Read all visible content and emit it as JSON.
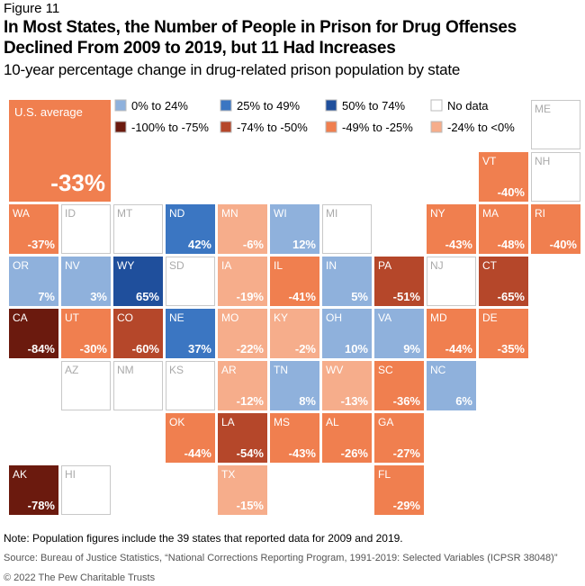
{
  "figure": "Figure 11",
  "chart_data": {
    "type": "tilemap",
    "title": "In Most States, the Number of People in Prison for Drug Offenses Declined From 2009 to 2019, but 11 Had Increases",
    "subtitle": "10-year percentage change in drug-related prison population by state",
    "average": {
      "label": "U.S. average",
      "value": -33,
      "value_label": "-33%",
      "color": "#f07f4f"
    },
    "legend": [
      {
        "label": "0% to 24%",
        "color": "#8fb1dc"
      },
      {
        "label": "25% to 49%",
        "color": "#3b76c2"
      },
      {
        "label": "50% to 74%",
        "color": "#1f4f9c"
      },
      {
        "label": "No data",
        "color": "#ffffff"
      },
      {
        "label": "-100% to -75%",
        "color": "#6b1a0e"
      },
      {
        "label": "-74% to -50%",
        "color": "#b5472a"
      },
      {
        "label": "-49% to -25%",
        "color": "#f07f4f"
      },
      {
        "label": "-24% to <0%",
        "color": "#f6ad8b"
      }
    ],
    "categories": [
      "ME",
      "VT",
      "NH",
      "WA",
      "ID",
      "MT",
      "ND",
      "MN",
      "WI",
      "MI",
      "NY",
      "MA",
      "RI",
      "OR",
      "NV",
      "WY",
      "SD",
      "IA",
      "IL",
      "IN",
      "PA",
      "NJ",
      "CT",
      "CA",
      "UT",
      "CO",
      "NE",
      "MO",
      "KY",
      "OH",
      "VA",
      "MD",
      "DE",
      "AZ",
      "NM",
      "KS",
      "AR",
      "TN",
      "WV",
      "SC",
      "NC",
      "OK",
      "LA",
      "MS",
      "AL",
      "GA",
      "AK",
      "HI",
      "TX",
      "FL"
    ],
    "values": [
      null,
      -40,
      null,
      -37,
      null,
      null,
      42,
      -6,
      12,
      null,
      -43,
      -48,
      -40,
      7,
      3,
      65,
      null,
      -19,
      -41,
      5,
      -51,
      null,
      -65,
      -84,
      -30,
      -60,
      37,
      -22,
      -2,
      10,
      9,
      -44,
      -35,
      null,
      null,
      null,
      -12,
      8,
      -13,
      -36,
      6,
      -44,
      -54,
      -43,
      -26,
      -27,
      -78,
      null,
      -15,
      -29
    ],
    "value_labels": [
      null,
      "-40%",
      null,
      "-37%",
      null,
      null,
      "42%",
      "-6%",
      "12%",
      null,
      "-43%",
      "-48%",
      "-40%",
      "7%",
      "3%",
      "65%",
      null,
      "-19%",
      "-41%",
      "5%",
      "-51%",
      null,
      "-65%",
      "-84%",
      "-30%",
      "-60%",
      "37%",
      "-22%",
      "-2%",
      "10%",
      "9%",
      "-44%",
      "-35%",
      null,
      null,
      null,
      "-12%",
      "8%",
      "-13%",
      "-36%",
      "6%",
      "-44%",
      "-54%",
      "-43%",
      "-26%",
      "-27%",
      "-78%",
      null,
      "-15%",
      "-29%"
    ],
    "colors": [
      "#ffffff",
      "#f07f4f",
      "#ffffff",
      "#f07f4f",
      "#ffffff",
      "#ffffff",
      "#3b76c2",
      "#f6ad8b",
      "#8fb1dc",
      "#ffffff",
      "#f07f4f",
      "#f07f4f",
      "#f07f4f",
      "#8fb1dc",
      "#8fb1dc",
      "#1f4f9c",
      "#ffffff",
      "#f6ad8b",
      "#f07f4f",
      "#8fb1dc",
      "#b5472a",
      "#ffffff",
      "#b5472a",
      "#6b1a0e",
      "#f07f4f",
      "#b5472a",
      "#3b76c2",
      "#f6ad8b",
      "#f6ad8b",
      "#8fb1dc",
      "#8fb1dc",
      "#f07f4f",
      "#f07f4f",
      "#ffffff",
      "#ffffff",
      "#ffffff",
      "#f6ad8b",
      "#8fb1dc",
      "#f6ad8b",
      "#f07f4f",
      "#8fb1dc",
      "#f07f4f",
      "#b5472a",
      "#f07f4f",
      "#f07f4f",
      "#f07f4f",
      "#6b1a0e",
      "#ffffff",
      "#f6ad8b",
      "#f07f4f"
    ]
  },
  "note": "Note: Population figures include the 39 states that reported data for 2009 and 2019.",
  "source": "Source: Bureau of Justice Statistics, “National Corrections Reporting Program, 1991-2019: Selected Variables (ICPSR 38048)”",
  "copyright": "© 2022 The Pew Charitable Trusts"
}
